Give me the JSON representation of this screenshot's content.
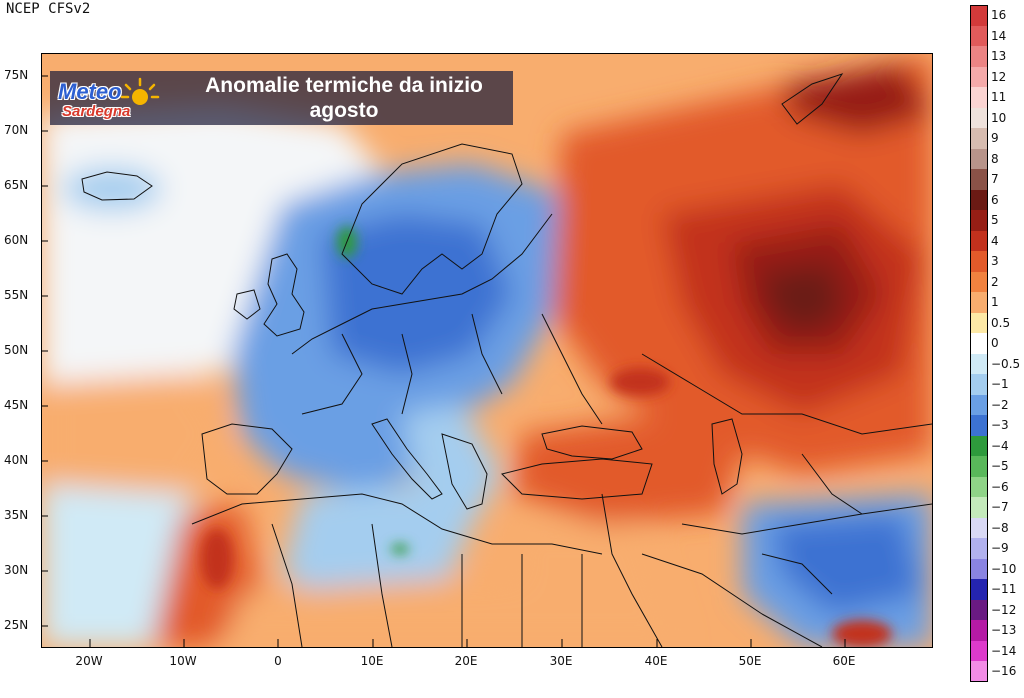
{
  "source": "NCEP CFSv2",
  "title": {
    "line1": "Anomalie termiche da inizio",
    "line2": "agosto"
  },
  "logo": {
    "line1": "Meteo",
    "line2": "Sardegna"
  },
  "axes": {
    "y_ticks": [
      "75N",
      "70N",
      "65N",
      "60N",
      "55N",
      "50N",
      "45N",
      "40N",
      "35N",
      "30N",
      "25N"
    ],
    "x_ticks": [
      "20W",
      "10W",
      "0",
      "10E",
      "20E",
      "30E",
      "40E",
      "50E",
      "60E"
    ]
  },
  "legend": [
    {
      "label": "16",
      "color": "#d23a3a"
    },
    {
      "label": "14",
      "color": "#e15b5b"
    },
    {
      "label": "13",
      "color": "#ec8484"
    },
    {
      "label": "12",
      "color": "#f5aaaa"
    },
    {
      "label": "11",
      "color": "#fbd4d2"
    },
    {
      "label": "10",
      "color": "#efe2dc"
    },
    {
      "label": "9",
      "color": "#d7bcb0"
    },
    {
      "label": "8",
      "color": "#b8948a"
    },
    {
      "label": "7",
      "color": "#8a5247"
    },
    {
      "label": "6",
      "color": "#6b1a14"
    },
    {
      "label": "5",
      "color": "#961e15"
    },
    {
      "label": "4",
      "color": "#c2311d"
    },
    {
      "label": "3",
      "color": "#e25a2a"
    },
    {
      "label": "2",
      "color": "#f1823f"
    },
    {
      "label": "1",
      "color": "#f8ad6e"
    },
    {
      "label": "0.5",
      "color": "#fde9a6"
    },
    {
      "label": "0",
      "color": "#ffffff"
    },
    {
      "label": "−0.5",
      "color": "#d0eaf6"
    },
    {
      "label": "−1",
      "color": "#a4cdef"
    },
    {
      "label": "−2",
      "color": "#6a9fe4"
    },
    {
      "label": "−3",
      "color": "#3c72d2"
    },
    {
      "label": "−4",
      "color": "#2e9a3c"
    },
    {
      "label": "−5",
      "color": "#59b85a"
    },
    {
      "label": "−6",
      "color": "#8fd487"
    },
    {
      "label": "−7",
      "color": "#c4eabb"
    },
    {
      "label": "−8",
      "color": "#d9d9f5"
    },
    {
      "label": "−9",
      "color": "#b1b1ee"
    },
    {
      "label": "−10",
      "color": "#8a84e2"
    },
    {
      "label": "−11",
      "color": "#2424b0"
    },
    {
      "label": "−12",
      "color": "#6a1a82"
    },
    {
      "label": "−13",
      "color": "#b51aa5"
    },
    {
      "label": "−14",
      "color": "#dd3acb"
    },
    {
      "label": "−16",
      "color": "#f28ce6"
    }
  ]
}
